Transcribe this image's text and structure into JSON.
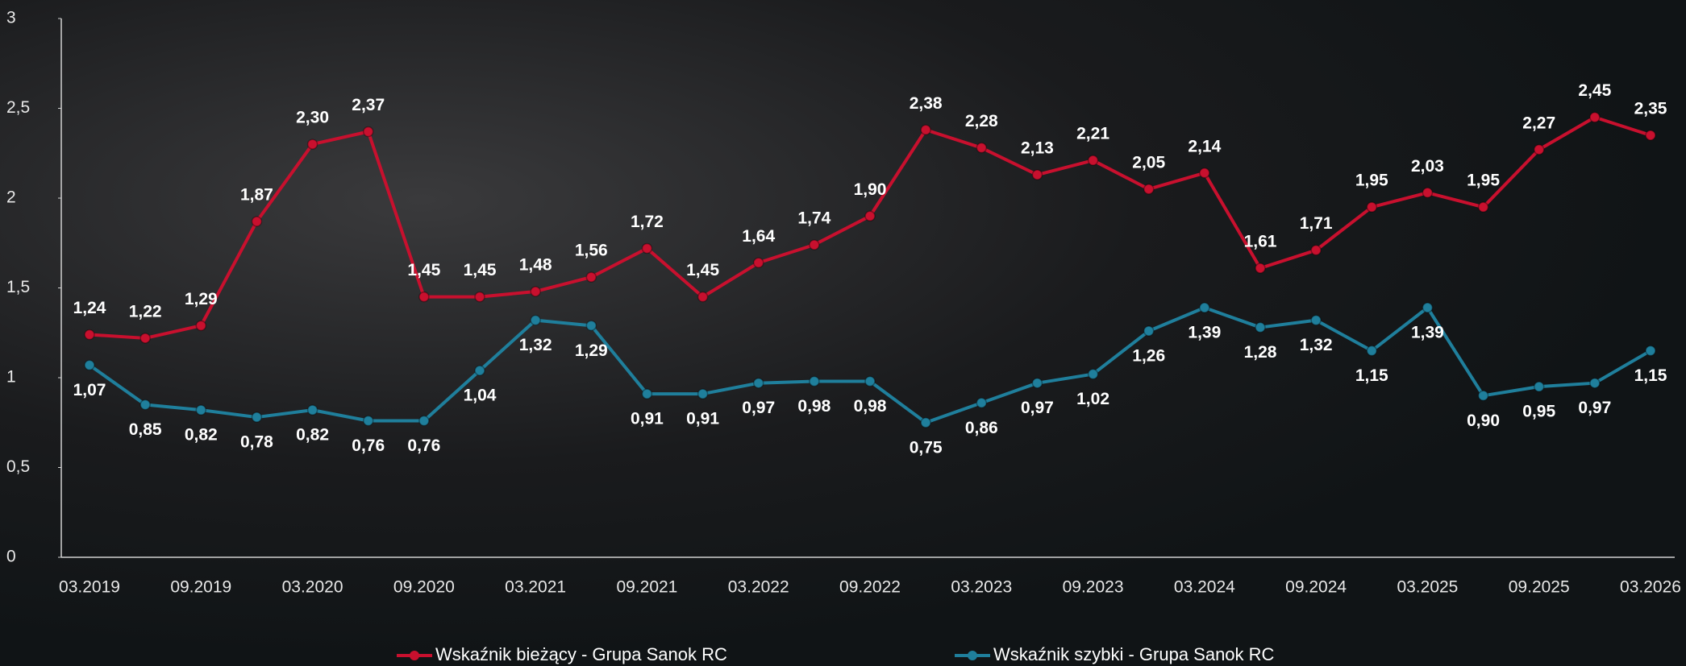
{
  "chart_data": {
    "type": "line",
    "categories": [
      "03.2019",
      null,
      "09.2019",
      null,
      "03.2020",
      null,
      "09.2020",
      null,
      "03.2021",
      null,
      "09.2021",
      null,
      "03.2022",
      null,
      "09.2022",
      null,
      "03.2023",
      null,
      "09.2023",
      null,
      "03.2024",
      null,
      "09.2024",
      null,
      "03.2025",
      null,
      "09.2025",
      null,
      "03.2026"
    ],
    "series": [
      {
        "name": "Wskaźnik bieżący - Grupa Sanok RC",
        "color": "#c8102e",
        "values": [
          1.24,
          1.22,
          1.29,
          1.87,
          2.3,
          2.37,
          1.45,
          1.45,
          1.48,
          1.56,
          1.72,
          1.45,
          1.64,
          1.74,
          1.9,
          2.38,
          2.28,
          2.13,
          2.21,
          2.05,
          2.14,
          1.61,
          1.71,
          1.95,
          2.03,
          1.95,
          2.27,
          2.45,
          2.35
        ],
        "value_labels": [
          "1,24",
          "1,22",
          "1,29",
          "1,87",
          "2,30",
          "2,37",
          "1,45",
          "1,45",
          "1,48",
          "1,56",
          "1,72",
          "1,45",
          "1,64",
          "1,74",
          "1,90",
          "2,38",
          "2,28",
          "2,13",
          "2,21",
          "2,05",
          "2,14",
          "1,61",
          "1,71",
          "1,95",
          "2,03",
          "1,95",
          "2,27",
          "2,45",
          "2,35"
        ]
      },
      {
        "name": "Wskaźnik szybki - Grupa Sanok RC",
        "color": "#1f7f9c",
        "values": [
          1.07,
          0.85,
          0.82,
          0.78,
          0.82,
          0.76,
          0.76,
          1.04,
          1.32,
          1.29,
          0.91,
          0.91,
          0.97,
          0.98,
          0.98,
          0.75,
          0.86,
          0.97,
          1.02,
          1.26,
          1.39,
          1.28,
          1.32,
          1.15,
          1.39,
          0.9,
          0.95,
          0.97,
          1.15
        ],
        "value_labels": [
          "1,07",
          "0,85",
          "0,82",
          "0,78",
          "0,82",
          "0,76",
          "0,76",
          "1,04",
          "1,32",
          "1,29",
          "0,91",
          "0,91",
          "0,97",
          "0,98",
          "0,98",
          "0,75",
          "0,86",
          "0,97",
          "1,02",
          "1,26",
          "1,39",
          "1,28",
          "1,32",
          "1,15",
          "1,39",
          "0,90",
          "0,95",
          "0,97",
          "1,15"
        ]
      }
    ],
    "ylim": [
      0,
      3
    ],
    "yticks": [
      0,
      {
        "value": 0.5,
        "label": "0,5"
      },
      1,
      {
        "value": 1.5,
        "label": "1,5"
      },
      2,
      {
        "value": 2.5,
        "label": "2,5"
      },
      3
    ]
  }
}
